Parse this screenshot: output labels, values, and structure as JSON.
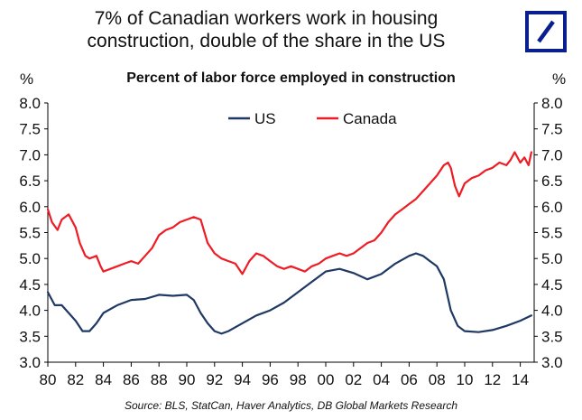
{
  "header": {
    "title_line1": "7% of Canadian workers work in housing",
    "title_line2": "construction, double of the share in the US",
    "logo": "deutsche-bank-logo"
  },
  "chart_data": {
    "type": "line",
    "title": "Percent of labor force employed in construction",
    "ylabel_left": "%",
    "ylabel_right": "%",
    "ylim": [
      3.0,
      8.0
    ],
    "xlim": [
      1980,
      2015
    ],
    "yticks": [
      "3.0",
      "3.5",
      "4.0",
      "4.5",
      "5.0",
      "5.5",
      "6.0",
      "6.5",
      "7.0",
      "7.5",
      "8.0"
    ],
    "xticks": [
      "80",
      "82",
      "84",
      "86",
      "88",
      "90",
      "92",
      "94",
      "96",
      "98",
      "00",
      "02",
      "04",
      "06",
      "08",
      "10",
      "12",
      "14"
    ],
    "legend_position": "top-center",
    "grid": false,
    "series": [
      {
        "name": "US",
        "color": "#1f3864",
        "x": [
          1980.0,
          1980.5,
          1981.0,
          1981.5,
          1982.0,
          1982.5,
          1983.0,
          1983.5,
          1984.0,
          1985.0,
          1986.0,
          1987.0,
          1988.0,
          1989.0,
          1990.0,
          1990.5,
          1991.0,
          1991.5,
          1992.0,
          1992.5,
          1993.0,
          1994.0,
          1995.0,
          1996.0,
          1997.0,
          1998.0,
          1999.0,
          2000.0,
          2001.0,
          2002.0,
          2003.0,
          2004.0,
          2005.0,
          2006.0,
          2006.5,
          2007.0,
          2007.5,
          2008.0,
          2008.5,
          2009.0,
          2009.5,
          2010.0,
          2011.0,
          2012.0,
          2013.0,
          2014.0,
          2014.8
        ],
        "values": [
          4.35,
          4.1,
          4.1,
          3.95,
          3.8,
          3.6,
          3.6,
          3.75,
          3.95,
          4.1,
          4.2,
          4.22,
          4.3,
          4.28,
          4.3,
          4.2,
          3.95,
          3.75,
          3.6,
          3.55,
          3.6,
          3.75,
          3.9,
          4.0,
          4.15,
          4.35,
          4.55,
          4.75,
          4.8,
          4.72,
          4.6,
          4.7,
          4.9,
          5.05,
          5.1,
          5.05,
          4.95,
          4.85,
          4.6,
          4.0,
          3.7,
          3.6,
          3.58,
          3.62,
          3.7,
          3.8,
          3.9
        ]
      },
      {
        "name": "Canada",
        "color": "#ee1c24",
        "x": [
          1980.0,
          1980.3,
          1980.7,
          1981.0,
          1981.5,
          1982.0,
          1982.3,
          1982.7,
          1983.0,
          1983.5,
          1983.8,
          1984.0,
          1984.5,
          1985.0,
          1985.5,
          1986.0,
          1986.5,
          1987.0,
          1987.5,
          1988.0,
          1988.5,
          1989.0,
          1989.5,
          1990.0,
          1990.5,
          1991.0,
          1991.5,
          1992.0,
          1992.5,
          1993.0,
          1993.5,
          1994.0,
          1994.5,
          1995.0,
          1995.5,
          1996.0,
          1996.5,
          1997.0,
          1997.5,
          1998.0,
          1998.5,
          1999.0,
          1999.5,
          2000.0,
          2000.5,
          2001.0,
          2001.5,
          2002.0,
          2002.5,
          2003.0,
          2003.5,
          2004.0,
          2004.5,
          2005.0,
          2005.5,
          2006.0,
          2006.5,
          2007.0,
          2007.5,
          2008.0,
          2008.5,
          2008.8,
          2009.0,
          2009.3,
          2009.6,
          2010.0,
          2010.5,
          2011.0,
          2011.5,
          2012.0,
          2012.5,
          2013.0,
          2013.3,
          2013.6,
          2014.0,
          2014.3,
          2014.6,
          2014.8
        ],
        "values": [
          5.95,
          5.7,
          5.55,
          5.75,
          5.85,
          5.6,
          5.3,
          5.05,
          5.0,
          5.05,
          4.85,
          4.75,
          4.8,
          4.85,
          4.9,
          4.95,
          4.9,
          5.05,
          5.2,
          5.45,
          5.55,
          5.6,
          5.7,
          5.75,
          5.8,
          5.75,
          5.3,
          5.1,
          5.0,
          4.95,
          4.9,
          4.7,
          4.95,
          5.1,
          5.05,
          4.95,
          4.85,
          4.8,
          4.85,
          4.8,
          4.75,
          4.85,
          4.9,
          5.0,
          5.05,
          5.1,
          5.05,
          5.1,
          5.2,
          5.3,
          5.35,
          5.5,
          5.7,
          5.85,
          5.95,
          6.05,
          6.15,
          6.3,
          6.45,
          6.6,
          6.8,
          6.85,
          6.75,
          6.4,
          6.2,
          6.45,
          6.55,
          6.6,
          6.7,
          6.75,
          6.85,
          6.8,
          6.9,
          7.05,
          6.85,
          6.95,
          6.8,
          7.05
        ]
      }
    ]
  },
  "source_note": "Source: BLS, StatCan, Haver Analytics, DB Global Markets Research"
}
